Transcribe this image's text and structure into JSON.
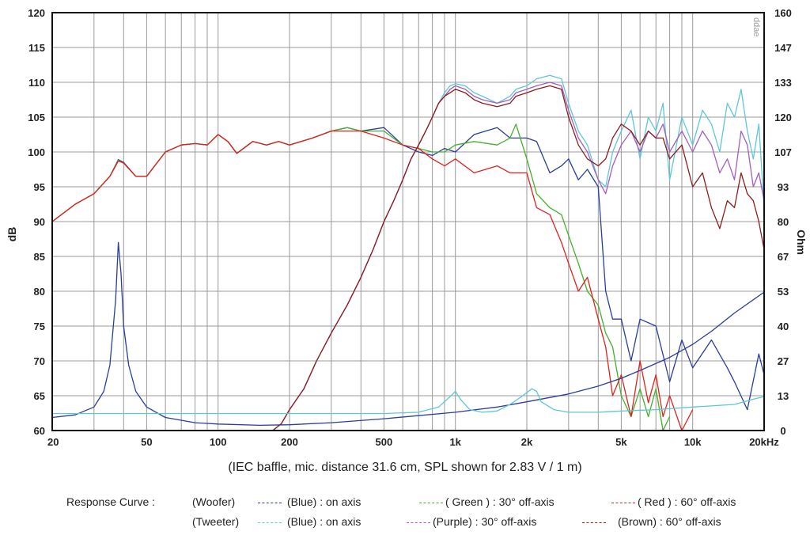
{
  "chart_data": {
    "type": "line",
    "xlabel": "",
    "x_unit_label": "kHz",
    "ylabel": "dB",
    "y2label": "Ohm",
    "watermark": "ddae",
    "caption": "(IEC baffle, mic. distance 31.6 cm, SPL shown for 2.83 V / 1 m)",
    "x_scale": "log",
    "xlim": [
      20,
      20000
    ],
    "ylim": [
      60,
      120
    ],
    "y2lim": [
      0,
      160
    ],
    "grid": true,
    "x_ticks": [
      {
        "value": 20,
        "label": "20"
      },
      {
        "value": 50,
        "label": "50"
      },
      {
        "value": 100,
        "label": "100"
      },
      {
        "value": 200,
        "label": "200"
      },
      {
        "value": 500,
        "label": "500"
      },
      {
        "value": 1000,
        "label": "1k"
      },
      {
        "value": 2000,
        "label": "2k"
      },
      {
        "value": 5000,
        "label": "5k"
      },
      {
        "value": 10000,
        "label": "10k"
      },
      {
        "value": 20000,
        "label": "20kHz"
      }
    ],
    "y_ticks": [
      "60",
      "65",
      "70",
      "75",
      "80",
      "85",
      "90",
      "95",
      "100",
      "105",
      "110",
      "115",
      "120"
    ],
    "y2_ticks": [
      "0",
      "13",
      "27",
      "40",
      "53",
      "67",
      "80",
      "93",
      "107",
      "120",
      "133",
      "147",
      "160"
    ],
    "legend": {
      "title": "Response Curve :",
      "woofer_label": "(Woofer)",
      "tweeter_label": "(Tweeter)",
      "entries": [
        {
          "label": "(Blue)  : on axis",
          "color": "#2b3d9a"
        },
        {
          "label": "( Green ) : 30° off-axis",
          "color": "#44b02a"
        },
        {
          "label": "( Red ) : 60° off-axis",
          "color": "#e0221f"
        },
        {
          "label": "(Blue) : on axis",
          "color": "#5ec7d6"
        },
        {
          "label": "(Purple) : 30° off-axis",
          "color": "#a25ec0"
        },
        {
          "label": "(Brown) : 60° off-axis",
          "color": "#8e1c1c"
        }
      ]
    },
    "series": [
      {
        "key": "woofer_on",
        "color": "#2b3d9a",
        "axis": "left",
        "x": [
          20,
          25,
          30,
          35,
          38,
          40,
          45,
          50,
          60,
          70,
          80,
          90,
          100,
          110,
          120,
          140,
          160,
          180,
          200,
          250,
          300,
          350,
          400,
          500,
          600,
          700,
          800,
          900,
          1000,
          1200,
          1500,
          1700,
          2000,
          2200,
          2500,
          2800,
          3000,
          3300,
          3600,
          4000,
          4300,
          4600,
          5000,
          5500,
          6000,
          7000,
          8000,
          9000,
          10000,
          12000,
          14000,
          15000,
          17000,
          19000,
          20000
        ],
        "y": [
          90,
          92.5,
          94,
          96.5,
          98.9,
          98.5,
          96.5,
          96.5,
          100,
          101,
          101.2,
          101,
          102.5,
          101.5,
          99.8,
          101.5,
          101,
          101.5,
          101,
          102,
          103,
          103.5,
          103,
          103.5,
          101,
          100,
          99.5,
          100.5,
          100,
          102.5,
          103.5,
          102,
          102,
          101.5,
          97,
          98,
          99,
          96,
          97.5,
          95,
          80,
          76,
          76,
          70,
          76,
          75,
          67,
          73,
          69,
          73,
          69,
          67,
          63,
          71,
          68
        ]
      },
      {
        "key": "woofer_30",
        "color": "#44b02a",
        "axis": "left",
        "x": [
          20,
          25,
          30,
          35,
          38,
          40,
          45,
          50,
          60,
          70,
          80,
          90,
          100,
          110,
          120,
          140,
          160,
          180,
          200,
          250,
          300,
          350,
          400,
          500,
          600,
          700,
          800,
          900,
          1000,
          1200,
          1500,
          1700,
          1800,
          2000,
          2200,
          2500,
          2800,
          3000,
          3300,
          3600,
          4000,
          4300,
          4600,
          5000,
          5500,
          6000,
          6500,
          7000,
          7500,
          8000
        ],
        "y": [
          90,
          92.5,
          94,
          96.5,
          98.8,
          98.4,
          96.5,
          96.5,
          100,
          101,
          101.2,
          101,
          102.5,
          101.5,
          99.8,
          101.5,
          101,
          101.5,
          101,
          102,
          103,
          103.5,
          103,
          103,
          101,
          100.5,
          100,
          100,
          101,
          101.5,
          101,
          102,
          104,
          99,
          94,
          92,
          91,
          88,
          84,
          80,
          78,
          74,
          72,
          65,
          62,
          66,
          62,
          66,
          60,
          62
        ]
      },
      {
        "key": "woofer_60",
        "color": "#e0221f",
        "axis": "left",
        "x": [
          20,
          25,
          30,
          35,
          38,
          40,
          45,
          50,
          60,
          70,
          80,
          90,
          100,
          110,
          120,
          140,
          160,
          180,
          200,
          250,
          300,
          350,
          400,
          500,
          600,
          700,
          800,
          900,
          1000,
          1200,
          1500,
          1700,
          2000,
          2200,
          2500,
          2800,
          3000,
          3300,
          3600,
          4000,
          4300,
          4600,
          5000,
          5500,
          6000,
          6500,
          7000,
          7500,
          8000,
          9000,
          10000
        ],
        "y": [
          90,
          92.5,
          94,
          96.5,
          98.7,
          98.4,
          96.5,
          96.5,
          100,
          101,
          101.2,
          101,
          102.5,
          101.5,
          99.8,
          101.5,
          101,
          101.5,
          101,
          102,
          103,
          103,
          103,
          102,
          101,
          100.5,
          99,
          98,
          99,
          97,
          98,
          97,
          97,
          92,
          91,
          87,
          84,
          80,
          82,
          76,
          72,
          65,
          68,
          62,
          70,
          64,
          68,
          62,
          65,
          60,
          63
        ]
      },
      {
        "key": "tweeter_on",
        "color": "#5ec7d6",
        "axis": "left",
        "x": [
          170,
          185,
          200,
          230,
          260,
          300,
          350,
          400,
          450,
          500,
          550,
          600,
          650,
          700,
          750,
          800,
          850,
          900,
          950,
          1000,
          1100,
          1200,
          1300,
          1500,
          1700,
          1800,
          2000,
          2200,
          2500,
          2800,
          3000,
          3300,
          3600,
          4000,
          4300,
          4600,
          5000,
          5500,
          6000,
          6500,
          7000,
          7500,
          8000,
          9000,
          10000,
          11000,
          12000,
          13000,
          14000,
          15000,
          16000,
          17000,
          18000,
          19000,
          20000
        ],
        "y": [
          60,
          61,
          63,
          66,
          70,
          74,
          78,
          82,
          86,
          90,
          93,
          96,
          99,
          101,
          103,
          105,
          107,
          108.5,
          109.5,
          109.8,
          109.5,
          108.5,
          108,
          107,
          108,
          109,
          109.5,
          110.5,
          111,
          110.5,
          107,
          103,
          101,
          96,
          95,
          100,
          103,
          106,
          99,
          105,
          103,
          107,
          96,
          105,
          101,
          106,
          104,
          100,
          107,
          105,
          109,
          103,
          99,
          104,
          92
        ]
      },
      {
        "key": "tweeter_30",
        "color": "#a25ec0",
        "axis": "left",
        "x": [
          170,
          185,
          200,
          230,
          260,
          300,
          350,
          400,
          450,
          500,
          550,
          600,
          650,
          700,
          750,
          800,
          850,
          900,
          950,
          1000,
          1100,
          1200,
          1300,
          1500,
          1700,
          1800,
          2000,
          2200,
          2500,
          2800,
          3000,
          3300,
          3600,
          4000,
          4300,
          4600,
          5000,
          5500,
          6000,
          6500,
          7000,
          7500,
          8000,
          9000,
          10000,
          11000,
          12000,
          13000,
          14000,
          15000,
          16000,
          17000,
          18000,
          19000,
          20000
        ],
        "y": [
          60,
          61,
          63,
          66,
          70,
          74,
          78,
          82,
          86,
          90,
          93,
          96,
          99,
          101,
          103,
          105,
          107,
          108,
          109,
          109.5,
          109,
          108,
          107.5,
          107,
          107.5,
          108.5,
          109,
          109.5,
          110,
          109.5,
          106,
          102,
          100,
          96,
          94,
          98,
          101,
          103,
          100,
          103,
          102,
          104,
          100,
          103,
          100,
          103,
          101,
          97,
          99,
          96,
          103,
          101,
          95,
          97,
          93
        ]
      },
      {
        "key": "tweeter_60",
        "color": "#8e1c1c",
        "axis": "left",
        "x": [
          170,
          185,
          200,
          230,
          260,
          300,
          350,
          400,
          450,
          500,
          550,
          600,
          650,
          700,
          750,
          800,
          850,
          900,
          950,
          1000,
          1100,
          1200,
          1300,
          1500,
          1700,
          1800,
          2000,
          2200,
          2500,
          2800,
          3000,
          3300,
          3600,
          4000,
          4300,
          4600,
          5000,
          5500,
          6000,
          6500,
          7000,
          7500,
          8000,
          9000,
          10000,
          11000,
          12000,
          13000,
          14000,
          15000,
          16000,
          17000,
          18000,
          19000,
          20000
        ],
        "y": [
          60,
          61,
          63,
          66,
          70,
          74,
          78,
          82,
          86,
          90,
          93,
          96,
          99,
          101,
          103,
          105,
          107,
          108,
          108.5,
          109,
          108.5,
          107.5,
          107,
          106.5,
          107,
          108,
          108.5,
          109,
          109.5,
          109,
          105,
          101,
          99,
          98,
          99,
          102,
          104,
          103,
          101,
          103,
          102,
          102,
          99,
          101,
          95,
          97,
          92,
          89,
          93,
          92,
          97,
          94,
          93,
          90,
          86
        ]
      },
      {
        "key": "woofer_impedance",
        "color": "#2b3d9a",
        "axis": "right",
        "x": [
          20,
          25,
          30,
          33,
          35,
          37,
          38,
          39,
          40,
          42,
          45,
          50,
          60,
          80,
          100,
          150,
          200,
          300,
          500,
          1000,
          1500,
          2000,
          3000,
          4000,
          5000,
          6000,
          8000,
          10000,
          12000,
          15000,
          20000
        ],
        "y": [
          5,
          6,
          9,
          15,
          25,
          50,
          72,
          60,
          40,
          25,
          15,
          9,
          5,
          3,
          2.5,
          2,
          2.2,
          3,
          4.5,
          7,
          9,
          11,
          14,
          17,
          20,
          23,
          28,
          33,
          38,
          45,
          53
        ]
      },
      {
        "key": "tweeter_impedance",
        "color": "#5ec7d6",
        "axis": "right",
        "x": [
          20,
          100,
          300,
          500,
          700,
          850,
          950,
          1000,
          1050,
          1150,
          1300,
          1500,
          1700,
          1900,
          2100,
          2200,
          2300,
          2600,
          3000,
          4000,
          5000,
          7000,
          10000,
          15000,
          18000,
          20000
        ],
        "y": [
          6.5,
          6.5,
          6.5,
          6.5,
          7,
          9,
          13,
          15,
          12,
          8,
          7,
          7.5,
          10,
          13,
          16,
          15,
          11,
          8,
          7,
          7,
          7.5,
          8,
          9,
          10,
          12,
          13
        ]
      }
    ]
  }
}
